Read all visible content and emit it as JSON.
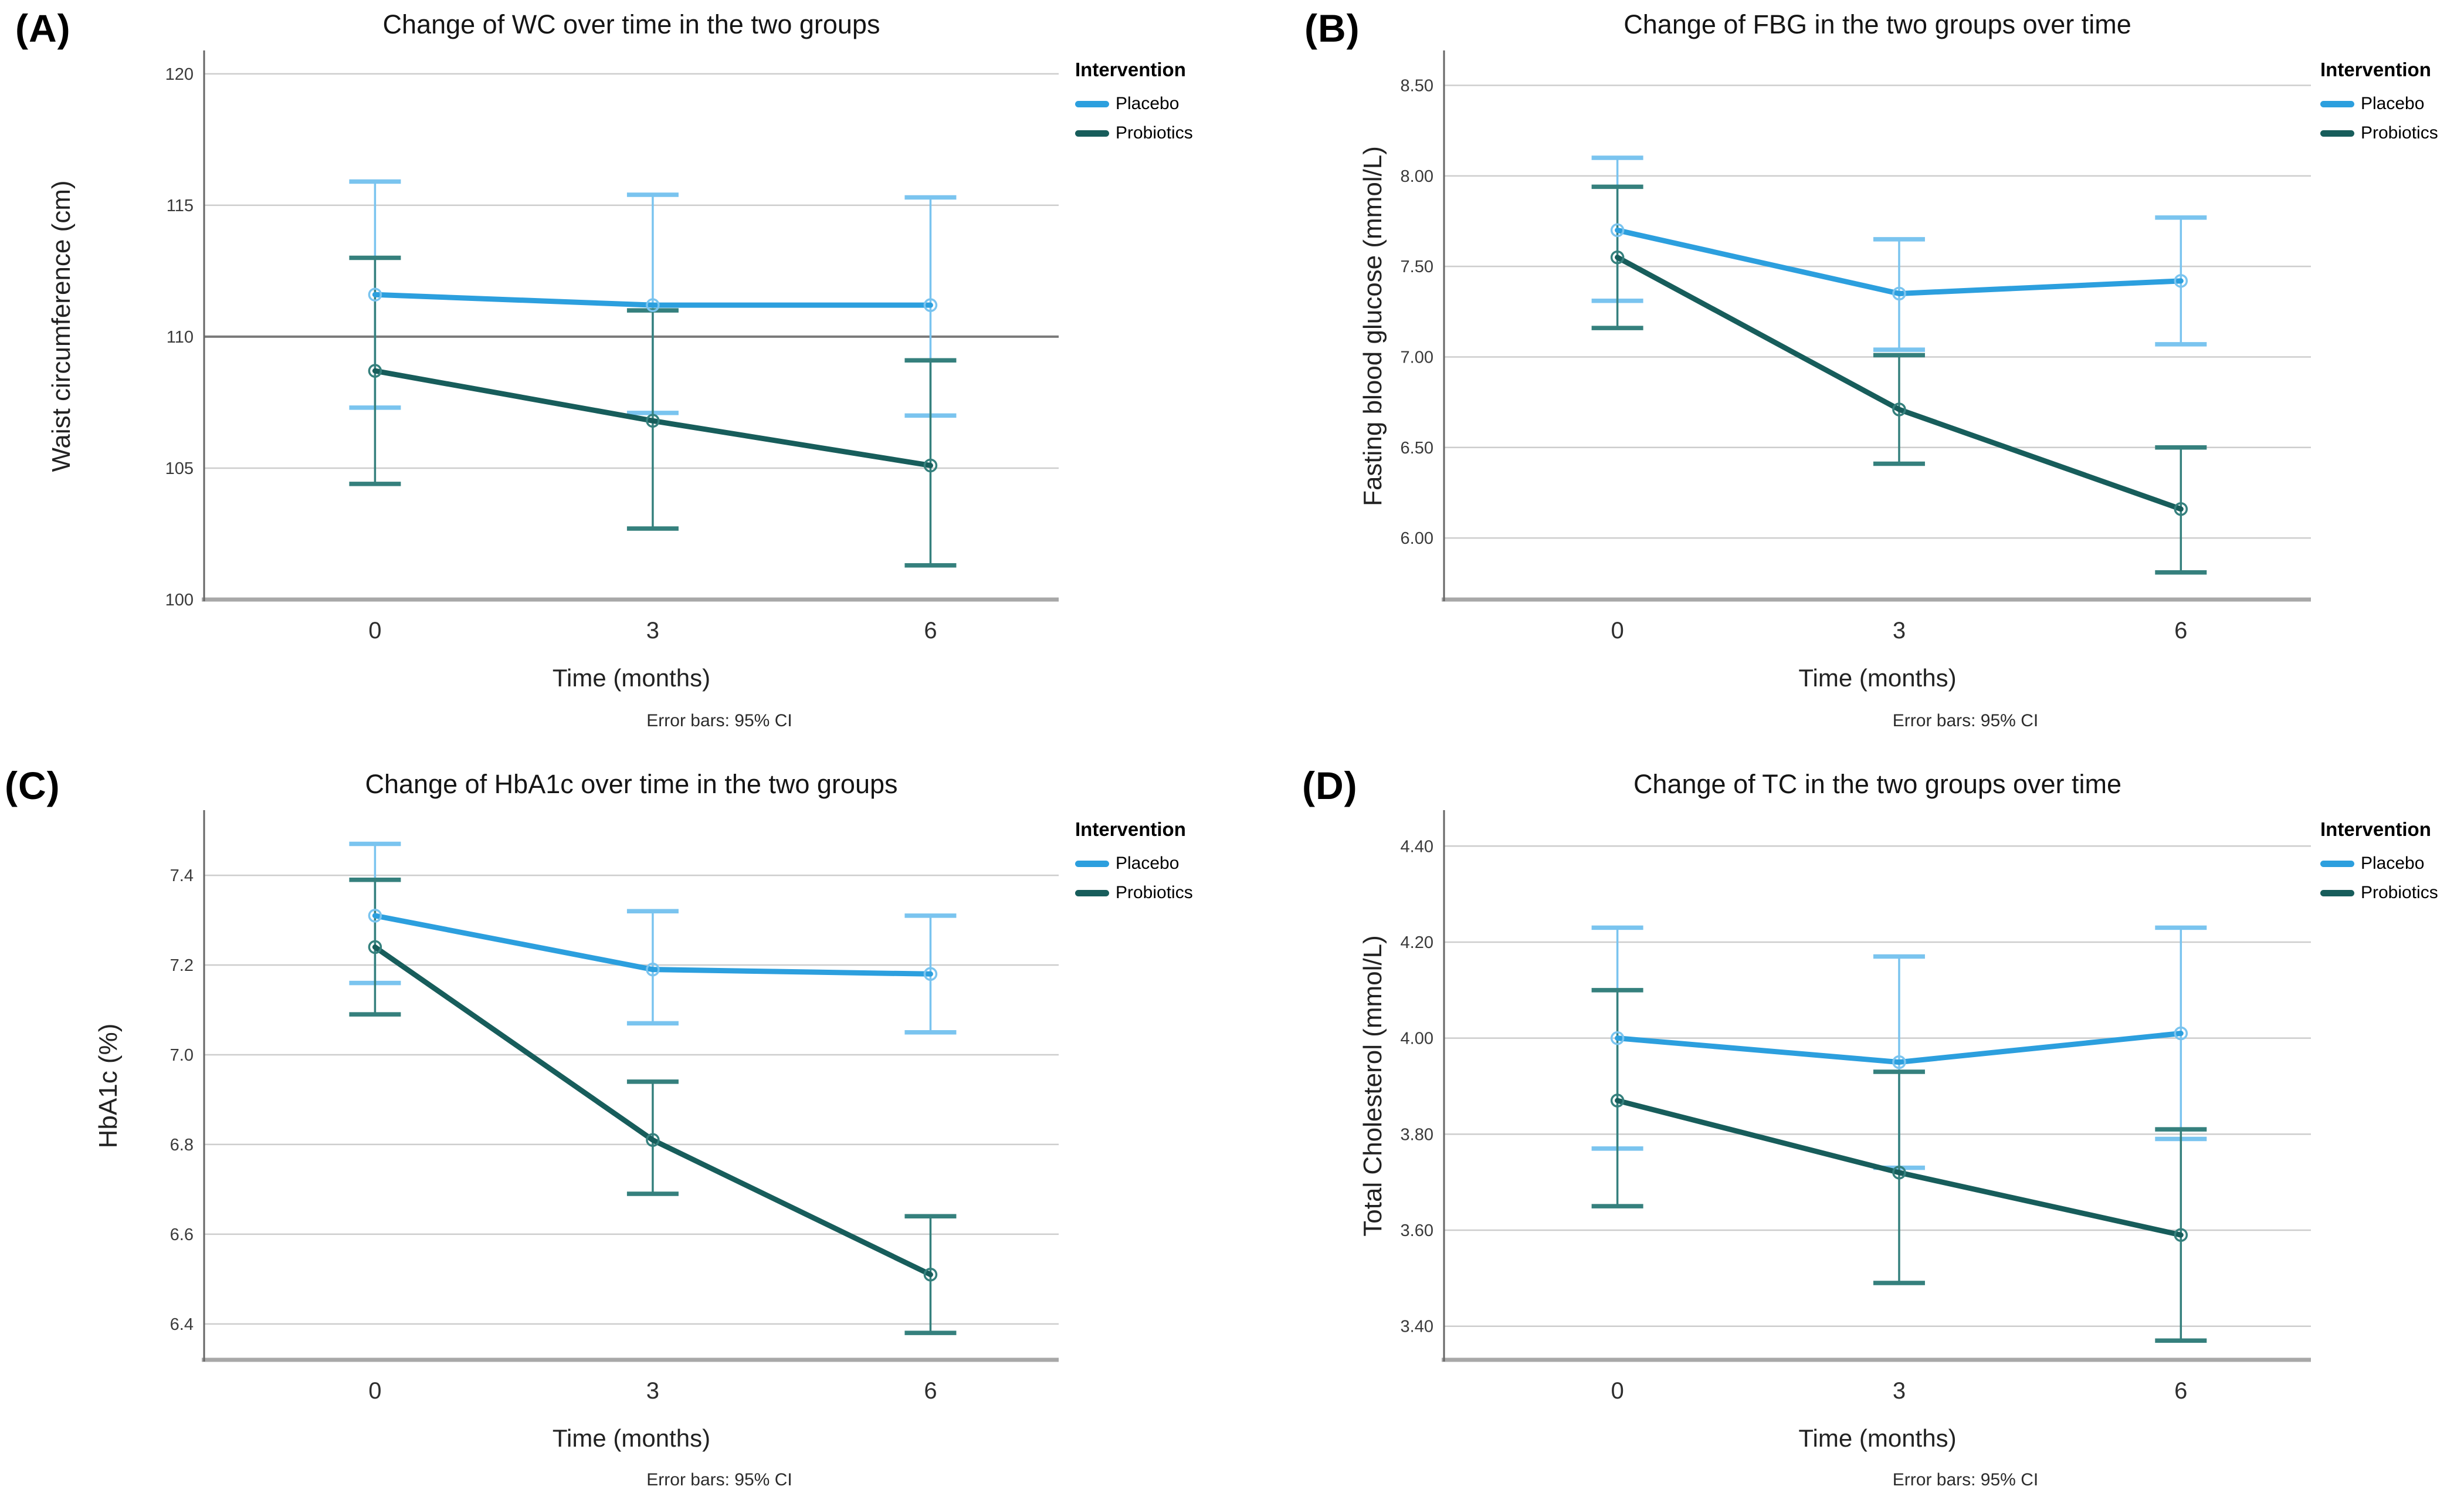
{
  "figure": {
    "background": "#ffffff",
    "error_caption": "Error bars: 95% CI",
    "legend_title": "Intervention",
    "series_names": [
      "Placebo",
      "Probiotics"
    ],
    "colors": {
      "placebo_line": "#2C9FDE",
      "placebo_error": "#7AC4EF",
      "probiotics_line": "#175D5B",
      "probiotics_error": "#35807D",
      "gridline": "#CDCDCD",
      "reference_line": "#7A7A7A",
      "y_axis": "#666666",
      "x_axis": "#A8A8A8"
    }
  },
  "chart_data": [
    {
      "type": "line",
      "panel_label": "(A)",
      "title": "Change of WC over time in the two groups",
      "xlabel": "Time (months)",
      "ylabel": "Waist circumference (cm)",
      "caption": "Error bars: 95% CI",
      "legend_title": "Intervention",
      "legend_position": "right",
      "grid": true,
      "categories": [
        "0",
        "3",
        "6"
      ],
      "y_ticks": [
        {
          "v": 120,
          "label": "120"
        },
        {
          "v": 115,
          "label": "115"
        },
        {
          "v": 110,
          "label": "110"
        },
        {
          "v": 105,
          "label": "105"
        },
        {
          "v": 100,
          "label": "100"
        }
      ],
      "ylim": [
        100,
        120.8
      ],
      "reference_line": 110,
      "series": [
        {
          "name": "Placebo",
          "color": "#2C9FDE",
          "error_color": "#7AC4EF",
          "values": [
            111.6,
            111.2,
            111.2
          ],
          "ci_low": [
            107.3,
            107.1,
            107.0
          ],
          "ci_high": [
            115.9,
            115.4,
            115.3
          ]
        },
        {
          "name": "Probiotics",
          "color": "#175D5B",
          "error_color": "#35807D",
          "values": [
            108.7,
            106.8,
            105.1
          ],
          "ci_low": [
            104.4,
            102.7,
            101.3
          ],
          "ci_high": [
            113.0,
            111.0,
            109.1
          ]
        }
      ]
    },
    {
      "type": "line",
      "panel_label": "(B)",
      "title": "Change of FBG in the two groups over time",
      "xlabel": "Time (months)",
      "ylabel": "Fasting blood glucose (mmol/L)",
      "caption": "Error bars: 95% CI",
      "legend_title": "Intervention",
      "legend_position": "right",
      "grid": true,
      "categories": [
        "0",
        "3",
        "6"
      ],
      "y_ticks": [
        {
          "v": 8.5,
          "label": "8.50"
        },
        {
          "v": 8.0,
          "label": "8.00"
        },
        {
          "v": 7.5,
          "label": "7.50"
        },
        {
          "v": 7.0,
          "label": "7.00"
        },
        {
          "v": 6.5,
          "label": "6.50"
        },
        {
          "v": 6.0,
          "label": "6.00"
        }
      ],
      "ylim": [
        5.66,
        8.68
      ],
      "reference_line": null,
      "series": [
        {
          "name": "Placebo",
          "color": "#2C9FDE",
          "error_color": "#7AC4EF",
          "values": [
            7.7,
            7.35,
            7.42
          ],
          "ci_low": [
            7.31,
            7.04,
            7.07
          ],
          "ci_high": [
            8.1,
            7.65,
            7.77
          ]
        },
        {
          "name": "Probiotics",
          "color": "#175D5B",
          "error_color": "#35807D",
          "values": [
            7.55,
            6.71,
            6.16
          ],
          "ci_low": [
            7.16,
            6.41,
            5.81
          ],
          "ci_high": [
            7.94,
            7.01,
            6.5
          ]
        }
      ]
    },
    {
      "type": "line",
      "panel_label": "(C)",
      "title": "Change of HbA1c over time in the two groups",
      "xlabel": "Time (months)",
      "ylabel": "HbA1c (%)",
      "caption": "Error bars: 95% CI",
      "legend_title": "Intervention",
      "legend_position": "right",
      "grid": true,
      "categories": [
        "0",
        "3",
        "6"
      ],
      "y_ticks": [
        {
          "v": 7.4,
          "label": "7.4"
        },
        {
          "v": 7.2,
          "label": "7.2"
        },
        {
          "v": 7.0,
          "label": "7.0"
        },
        {
          "v": 6.8,
          "label": "6.8"
        },
        {
          "v": 6.6,
          "label": "6.6"
        },
        {
          "v": 6.4,
          "label": "6.4"
        }
      ],
      "ylim": [
        6.32,
        7.54
      ],
      "reference_line": null,
      "series": [
        {
          "name": "Placebo",
          "color": "#2C9FDE",
          "error_color": "#7AC4EF",
          "values": [
            7.31,
            7.19,
            7.18
          ],
          "ci_low": [
            7.16,
            7.07,
            7.05
          ],
          "ci_high": [
            7.47,
            7.32,
            7.31
          ]
        },
        {
          "name": "Probiotics",
          "color": "#175D5B",
          "error_color": "#35807D",
          "values": [
            7.24,
            6.81,
            6.51
          ],
          "ci_low": [
            7.09,
            6.69,
            6.38
          ],
          "ci_high": [
            7.39,
            6.94,
            6.64
          ]
        }
      ]
    },
    {
      "type": "line",
      "panel_label": "(D)",
      "title": "Change of TC in the two groups over time",
      "xlabel": "Time (months)",
      "ylabel": "Total Cholesterol (mmol/L)",
      "caption": "Error bars: 95% CI",
      "legend_title": "Intervention",
      "legend_position": "right",
      "grid": true,
      "categories": [
        "0",
        "3",
        "6"
      ],
      "y_ticks": [
        {
          "v": 4.4,
          "label": "4.40"
        },
        {
          "v": 4.2,
          "label": "4.20"
        },
        {
          "v": 4.0,
          "label": "4.00"
        },
        {
          "v": 3.8,
          "label": "3.80"
        },
        {
          "v": 3.6,
          "label": "3.60"
        },
        {
          "v": 3.4,
          "label": "3.40"
        }
      ],
      "ylim": [
        3.33,
        4.47
      ],
      "reference_line": null,
      "series": [
        {
          "name": "Placebo",
          "color": "#2C9FDE",
          "error_color": "#7AC4EF",
          "values": [
            4.0,
            3.95,
            4.01
          ],
          "ci_low": [
            3.77,
            3.73,
            3.79
          ],
          "ci_high": [
            4.23,
            4.17,
            4.23
          ]
        },
        {
          "name": "Probiotics",
          "color": "#175D5B",
          "error_color": "#35807D",
          "values": [
            3.87,
            3.72,
            3.59
          ],
          "ci_low": [
            3.65,
            3.49,
            3.37
          ],
          "ci_high": [
            4.1,
            3.93,
            3.81
          ]
        }
      ]
    }
  ]
}
